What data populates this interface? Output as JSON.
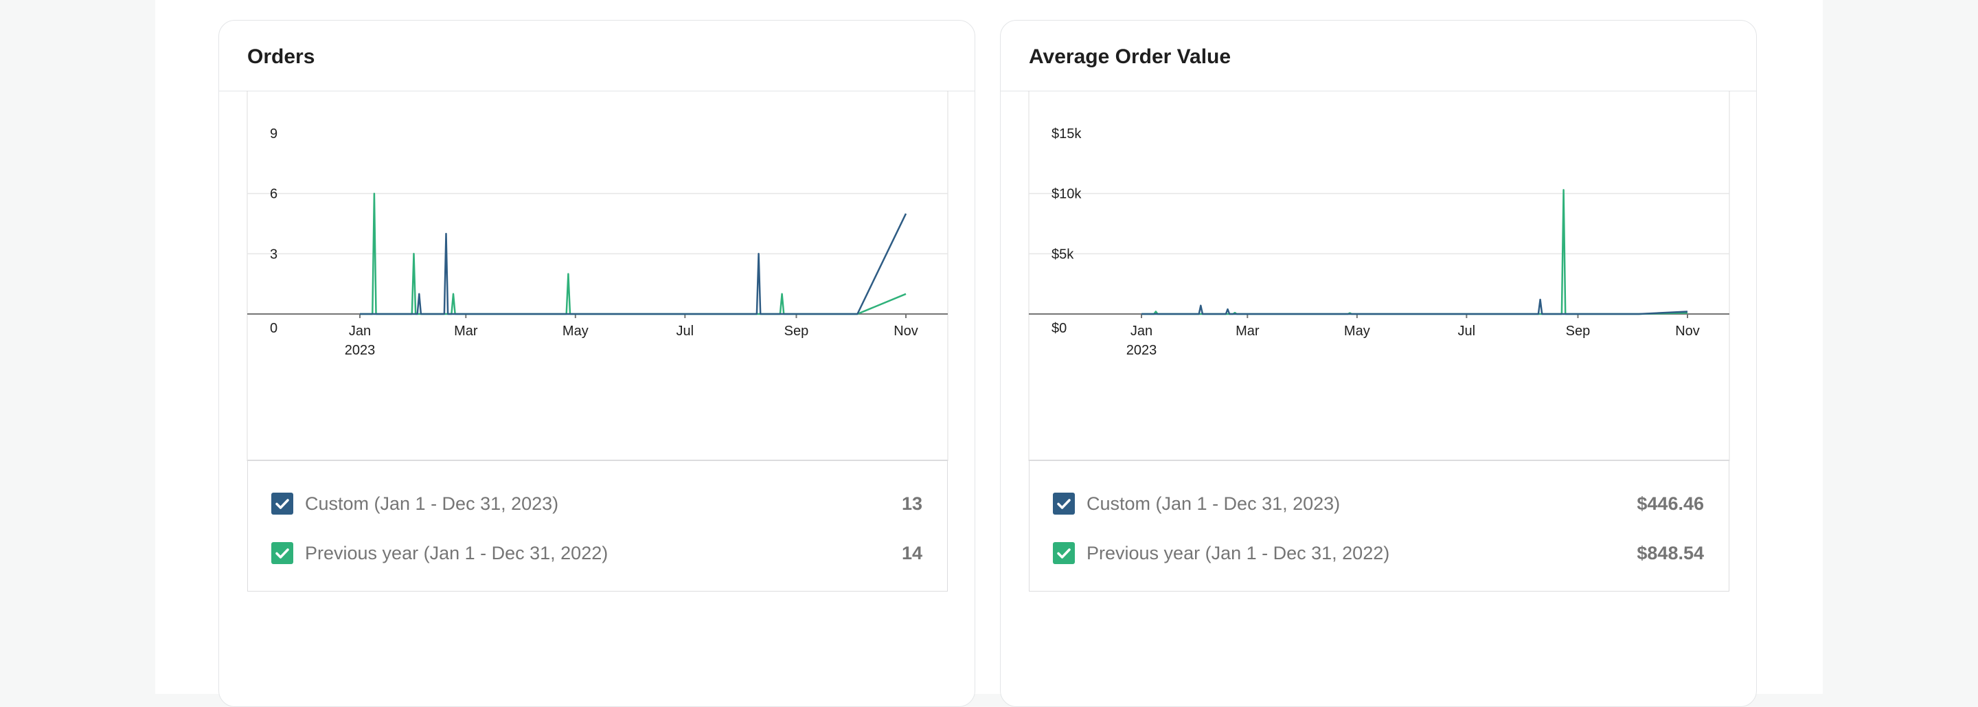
{
  "colors": {
    "series_current": "#2e5c84",
    "series_previous": "#2fb17a",
    "grid": "#e6e6e6",
    "axis": "#757575"
  },
  "cards": [
    {
      "title": "Orders",
      "legend": [
        {
          "label": "Custom (Jan 1 - Dec 31, 2023)",
          "value": "13",
          "color": "#2e5c84",
          "checked": true
        },
        {
          "label": "Previous year (Jan 1 - Dec 31, 2022)",
          "value": "14",
          "color": "#2fb17a",
          "checked": true
        }
      ]
    },
    {
      "title": "Average Order Value",
      "legend": [
        {
          "label": "Custom (Jan 1 - Dec 31, 2023)",
          "value": "$446.46",
          "color": "#2e5c84",
          "checked": true
        },
        {
          "label": "Previous year (Jan 1 - Dec 31, 2022)",
          "value": "$848.54",
          "color": "#2fb17a",
          "checked": true
        }
      ]
    }
  ],
  "chart_data": [
    {
      "type": "line",
      "title": "Orders",
      "ylim": [
        0,
        9
      ],
      "yticks": [
        "0",
        "3",
        "6",
        "9"
      ],
      "ytick_values": [
        0,
        3,
        6,
        9
      ],
      "xlim": [
        "2023-01-01",
        "2023-11-20"
      ],
      "xticks": [
        {
          "date": "2023-01-01",
          "label": "Jan",
          "sublabel": "2023"
        },
        {
          "date": "2023-03-01",
          "label": "Mar",
          "sublabel": ""
        },
        {
          "date": "2023-05-01",
          "label": "May",
          "sublabel": ""
        },
        {
          "date": "2023-07-01",
          "label": "Jul",
          "sublabel": ""
        },
        {
          "date": "2023-09-01",
          "label": "Sep",
          "sublabel": ""
        },
        {
          "date": "2023-11-01",
          "label": "Nov",
          "sublabel": ""
        }
      ],
      "grid": true,
      "series": [
        {
          "name": "Custom (Jan 1 - Dec 31, 2023)",
          "color": "#2e5c84",
          "points": [
            [
              "2023-01-01",
              0
            ],
            [
              "2023-02-02",
              0
            ],
            [
              "2023-02-03",
              1
            ],
            [
              "2023-02-04",
              0
            ],
            [
              "2023-02-17",
              0
            ],
            [
              "2023-02-18",
              4
            ],
            [
              "2023-02-19",
              0
            ],
            [
              "2023-08-10",
              0
            ],
            [
              "2023-08-11",
              3
            ],
            [
              "2023-08-12",
              0
            ],
            [
              "2023-10-05",
              0
            ],
            [
              "2023-11-01",
              5
            ]
          ]
        },
        {
          "name": "Previous year (Jan 1 - Dec 31, 2022)",
          "color": "#2fb17a",
          "points": [
            [
              "2023-01-01",
              0
            ],
            [
              "2023-01-08",
              0
            ],
            [
              "2023-01-09",
              6
            ],
            [
              "2023-01-10",
              0
            ],
            [
              "2023-01-30",
              0
            ],
            [
              "2023-01-31",
              3
            ],
            [
              "2023-02-01",
              0
            ],
            [
              "2023-02-21",
              0
            ],
            [
              "2023-02-22",
              1
            ],
            [
              "2023-02-23",
              0
            ],
            [
              "2023-04-26",
              0
            ],
            [
              "2023-04-27",
              2
            ],
            [
              "2023-04-28",
              0
            ],
            [
              "2023-08-23",
              0
            ],
            [
              "2023-08-24",
              1
            ],
            [
              "2023-08-25",
              0
            ],
            [
              "2023-10-05",
              0
            ],
            [
              "2023-11-01",
              1
            ]
          ]
        }
      ]
    },
    {
      "type": "line",
      "title": "Average Order Value",
      "ylim": [
        0,
        15000
      ],
      "yticks": [
        "$0",
        "$5k",
        "$10k",
        "$15k"
      ],
      "ytick_values": [
        0,
        5000,
        10000,
        15000
      ],
      "xlim": [
        "2023-01-01",
        "2023-11-20"
      ],
      "xticks": [
        {
          "date": "2023-01-01",
          "label": "Jan",
          "sublabel": "2023"
        },
        {
          "date": "2023-03-01",
          "label": "Mar",
          "sublabel": ""
        },
        {
          "date": "2023-05-01",
          "label": "May",
          "sublabel": ""
        },
        {
          "date": "2023-07-01",
          "label": "Jul",
          "sublabel": ""
        },
        {
          "date": "2023-09-01",
          "label": "Sep",
          "sublabel": ""
        },
        {
          "date": "2023-11-01",
          "label": "Nov",
          "sublabel": ""
        }
      ],
      "grid": true,
      "series": [
        {
          "name": "Custom (Jan 1 - Dec 31, 2023)",
          "color": "#2e5c84",
          "points": [
            [
              "2023-01-01",
              0
            ],
            [
              "2023-02-02",
              0
            ],
            [
              "2023-02-03",
              700
            ],
            [
              "2023-02-04",
              0
            ],
            [
              "2023-02-17",
              0
            ],
            [
              "2023-02-18",
              400
            ],
            [
              "2023-02-19",
              0
            ],
            [
              "2023-08-10",
              0
            ],
            [
              "2023-08-11",
              1200
            ],
            [
              "2023-08-12",
              0
            ],
            [
              "2023-10-05",
              0
            ],
            [
              "2023-11-01",
              200
            ]
          ]
        },
        {
          "name": "Previous year (Jan 1 - Dec 31, 2022)",
          "color": "#2fb17a",
          "points": [
            [
              "2023-01-01",
              0
            ],
            [
              "2023-01-08",
              0
            ],
            [
              "2023-01-09",
              200
            ],
            [
              "2023-01-10",
              0
            ],
            [
              "2023-02-21",
              0
            ],
            [
              "2023-02-22",
              100
            ],
            [
              "2023-02-23",
              0
            ],
            [
              "2023-04-26",
              0
            ],
            [
              "2023-04-27",
              80
            ],
            [
              "2023-04-28",
              0
            ],
            [
              "2023-08-23",
              0
            ],
            [
              "2023-08-24",
              10300
            ],
            [
              "2023-08-25",
              0
            ],
            [
              "2023-10-05",
              0
            ],
            [
              "2023-11-01",
              100
            ]
          ]
        }
      ]
    }
  ]
}
